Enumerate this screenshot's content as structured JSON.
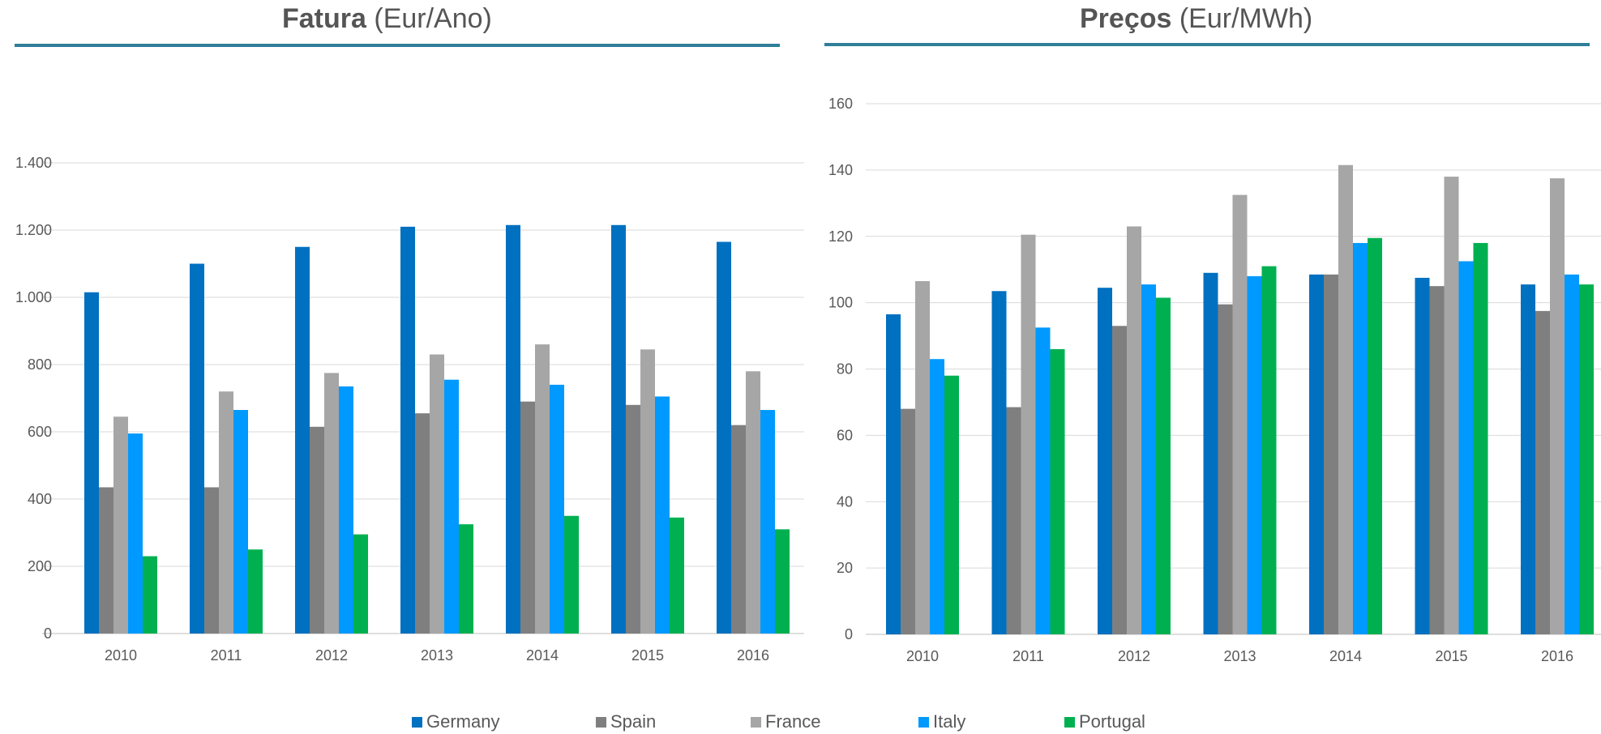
{
  "chart_data": [
    {
      "type": "bar",
      "title_bold": "Fatura",
      "title_rest": " (Eur/Ano)",
      "categories": [
        "2010",
        "2011",
        "2012",
        "2013",
        "2014",
        "2015",
        "2016"
      ],
      "ylim": [
        0,
        1400
      ],
      "yticks": [
        {
          "value": 0,
          "label": "0"
        },
        {
          "value": 200,
          "label": "200"
        },
        {
          "value": 400,
          "label": "400"
        },
        {
          "value": 600,
          "label": "600"
        },
        {
          "value": 800,
          "label": "800"
        },
        {
          "value": 1000,
          "label": "1.000"
        },
        {
          "value": 1200,
          "label": "1.200"
        },
        {
          "value": 1400,
          "label": "1.400"
        }
      ],
      "grid": true,
      "series": [
        {
          "name": "Germany",
          "color": "#0070c0",
          "values": [
            1015,
            1100,
            1150,
            1210,
            1215,
            1215,
            1165
          ]
        },
        {
          "name": "Spain",
          "color": "#7f7f7f",
          "values": [
            435,
            435,
            615,
            655,
            690,
            680,
            620
          ]
        },
        {
          "name": "France",
          "color": "#a6a6a6",
          "values": [
            645,
            720,
            775,
            830,
            860,
            845,
            780
          ]
        },
        {
          "name": "Italy",
          "color": "#0099ff",
          "values": [
            595,
            665,
            735,
            755,
            740,
            705,
            665
          ]
        },
        {
          "name": "Portugal",
          "color": "#00b050",
          "values": [
            230,
            250,
            295,
            325,
            350,
            345,
            310
          ]
        }
      ]
    },
    {
      "type": "bar",
      "title_bold": "Preços",
      "title_rest": " (Eur/MWh)",
      "categories": [
        "2010",
        "2011",
        "2012",
        "2013",
        "2014",
        "2015",
        "2016"
      ],
      "ylim": [
        0,
        160
      ],
      "yticks": [
        {
          "value": 0,
          "label": "0"
        },
        {
          "value": 20,
          "label": "20"
        },
        {
          "value": 40,
          "label": "40"
        },
        {
          "value": 60,
          "label": "60"
        },
        {
          "value": 80,
          "label": "80"
        },
        {
          "value": 100,
          "label": "100"
        },
        {
          "value": 120,
          "label": "120"
        },
        {
          "value": 140,
          "label": "140"
        },
        {
          "value": 160,
          "label": "160"
        }
      ],
      "grid": true,
      "series": [
        {
          "name": "Germany",
          "color": "#0070c0",
          "values": [
            96.5,
            103.5,
            104.5,
            109,
            108.5,
            107.5,
            105.5
          ]
        },
        {
          "name": "Spain",
          "color": "#7f7f7f",
          "values": [
            68,
            68.5,
            93,
            99.5,
            108.5,
            105,
            97.5
          ]
        },
        {
          "name": "France",
          "color": "#a6a6a6",
          "values": [
            106.5,
            120.5,
            123,
            132.5,
            141.5,
            138,
            137.5
          ]
        },
        {
          "name": "Italy",
          "color": "#0099ff",
          "values": [
            83,
            92.5,
            105.5,
            108,
            118,
            112.5,
            108.5
          ]
        },
        {
          "name": "Portugal",
          "color": "#00b050",
          "values": [
            78,
            86,
            101.5,
            111,
            119.5,
            118,
            105.5
          ]
        }
      ]
    }
  ],
  "legend": [
    {
      "name": "Germany",
      "color": "#0070c0"
    },
    {
      "name": "Spain",
      "color": "#7f7f7f"
    },
    {
      "name": "France",
      "color": "#a6a6a6"
    },
    {
      "name": "Italy",
      "color": "#0099ff"
    },
    {
      "name": "Portugal",
      "color": "#00b050"
    }
  ]
}
